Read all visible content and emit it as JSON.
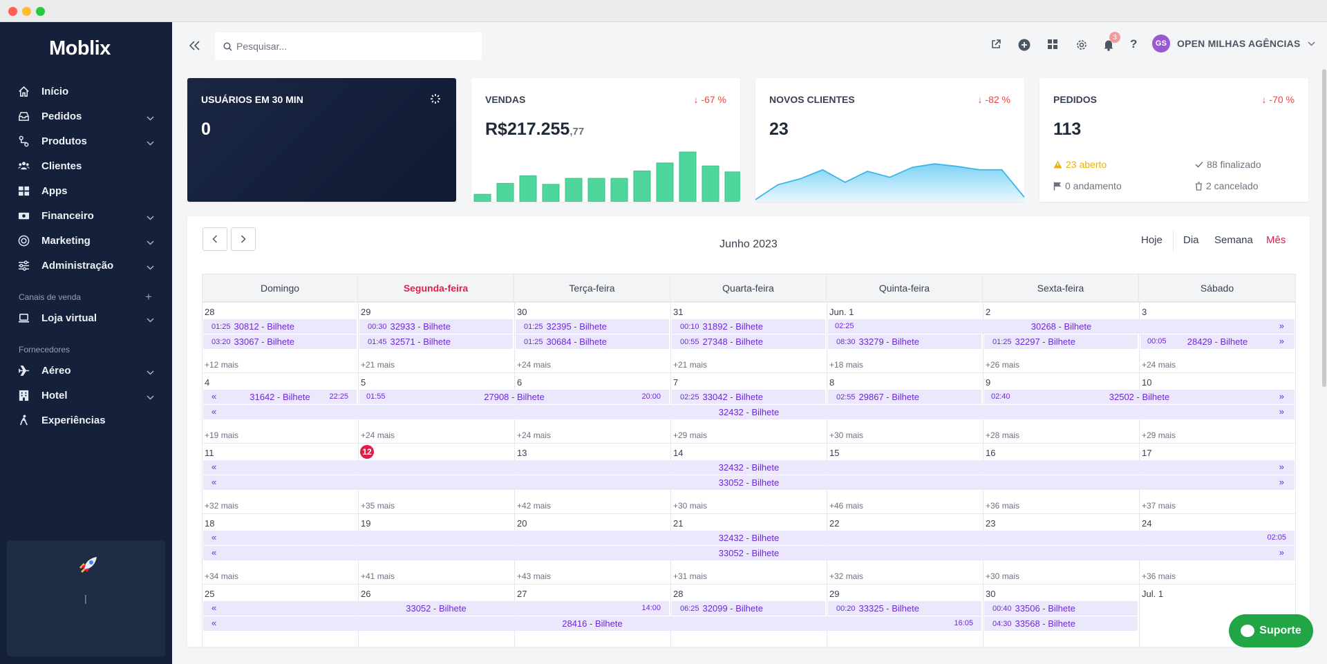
{
  "sidebar": {
    "logo_main": "Moblix",
    "items": [
      {
        "label": "Início",
        "icon": "home-icon",
        "chevron": false
      },
      {
        "label": "Pedidos",
        "icon": "inbox-icon",
        "chevron": true
      },
      {
        "label": "Produtos",
        "icon": "products-icon",
        "chevron": true
      },
      {
        "label": "Clientes",
        "icon": "users-icon",
        "chevron": false
      },
      {
        "label": "Apps",
        "icon": "apps-grid-icon",
        "chevron": false
      },
      {
        "label": "Financeiro",
        "icon": "money-icon",
        "chevron": true
      },
      {
        "label": "Marketing",
        "icon": "target-icon",
        "chevron": true
      },
      {
        "label": "Administração",
        "icon": "sliders-icon",
        "chevron": true
      }
    ],
    "section_sales": "Canais de venda",
    "store": {
      "label": "Loja virtual",
      "icon": "laptop-icon"
    },
    "section_suppliers": "Fornecedores",
    "suppliers": [
      {
        "label": "Aéreo",
        "icon": "plane-icon",
        "chevron": true
      },
      {
        "label": "Hotel",
        "icon": "hotel-icon",
        "chevron": true
      },
      {
        "label": "Experiências",
        "icon": "hiking-icon",
        "chevron": false
      }
    ],
    "support_box_text": "|"
  },
  "topbar": {
    "search_placeholder": "Pesquisar...",
    "notif_count": "3",
    "user_initials": "GS",
    "user_name": "OPEN MILHAS AGÊNCIAS"
  },
  "cards": {
    "users": {
      "title": "USUÁRIOS EM 30 MIN",
      "value": "0"
    },
    "sales": {
      "title": "VENDAS",
      "value": "R$217.255",
      "cents": ",77",
      "delta": "-67 %",
      "bars": [
        0.15,
        0.37,
        0.52,
        0.35,
        0.47,
        0.47,
        0.47,
        0.62,
        0.78,
        1.0,
        0.72,
        0.6
      ]
    },
    "clients": {
      "title": "NOVOS CLIENTES",
      "value": "23",
      "delta": "-82 %",
      "points": [
        0.0,
        0.3,
        0.42,
        0.6,
        0.35,
        0.57,
        0.45,
        0.65,
        0.72,
        0.67,
        0.6,
        0.6,
        0.05
      ]
    },
    "orders": {
      "title": "PEDIDOS",
      "value": "113",
      "delta": "-70 %",
      "open": "23 aberto",
      "done": "88 finalizado",
      "progress": "0 andamento",
      "canceled": "2 cancelado"
    }
  },
  "calendar": {
    "title": "Junho 2023",
    "views": [
      "Hoje",
      "Dia",
      "Semana",
      "Mês"
    ],
    "active_view": "Mês",
    "days": [
      "Domingo",
      "Segunda-feira",
      "Terça-feira",
      "Quarta-feira",
      "Quinta-feira",
      "Sexta-feira",
      "Sábado"
    ],
    "highlight_day": 1,
    "weeks": [
      {
        "dates": [
          "28",
          "29",
          "30",
          "31",
          "Jun. 1",
          "2",
          "3"
        ],
        "more": [
          "+12 mais",
          "+21 mais",
          "+24 mais",
          "+21 mais",
          "+18 mais",
          "+26 mais",
          "+24 mais"
        ],
        "events": [
          {
            "row": 0,
            "s": 0,
            "e": 0,
            "time": "01:25",
            "name": "32395 - Bilhete",
            "code": "30812 - Bilhete"
          },
          {
            "row": 1,
            "s": 0,
            "e": 0,
            "time": "03:20",
            "code": "33067 - Bilhete"
          },
          {
            "row": 0,
            "s": 1,
            "e": 1,
            "time": "00:30",
            "code": "32933 - Bilhete"
          },
          {
            "row": 1,
            "s": 1,
            "e": 1,
            "time": "01:45",
            "code": "32571 - Bilhete"
          },
          {
            "row": 0,
            "s": 2,
            "e": 2,
            "time": "01:25",
            "code": "32395 - Bilhete"
          },
          {
            "row": 1,
            "s": 2,
            "e": 2,
            "time": "01:25",
            "code": "30684 - Bilhete"
          },
          {
            "row": 0,
            "s": 3,
            "e": 3,
            "time": "00:10",
            "code": "31892 - Bilhete"
          },
          {
            "row": 1,
            "s": 3,
            "e": 3,
            "time": "00:55",
            "code": "27348 - Bilhete"
          },
          {
            "row": 0,
            "s": 4,
            "e": 6,
            "time": "02:25",
            "code": "30268 - Bilhete",
            "center": true,
            "right_arrow": true
          },
          {
            "row": 1,
            "s": 4,
            "e": 4,
            "time": "08:30",
            "code": "33279 - Bilhete"
          },
          {
            "row": 1,
            "s": 5,
            "e": 5,
            "time": "01:25",
            "code": "32297 - Bilhete"
          },
          {
            "row": 1,
            "s": 6,
            "e": 6,
            "time": "00:05",
            "code": "28429 - Bilhete",
            "center": true,
            "right_arrow": true
          }
        ]
      },
      {
        "dates": [
          "4",
          "5",
          "6",
          "7",
          "8",
          "9",
          "10"
        ],
        "more": [
          "+19 mais",
          "+24 mais",
          "+24 mais",
          "+29 mais",
          "+30 mais",
          "+28 mais",
          "+29 mais"
        ],
        "events": [
          {
            "row": 0,
            "s": 0,
            "e": 0,
            "code": "31642 - Bilhete",
            "center": true,
            "left_arrow": true,
            "time_right": "22:25"
          },
          {
            "row": 0,
            "s": 1,
            "e": 2,
            "time_left": "01:55",
            "code": "27908 - Bilhete",
            "center": true,
            "time_right": "20:00"
          },
          {
            "row": 0,
            "s": 3,
            "e": 3,
            "time": "02:25",
            "code": "33042 - Bilhete"
          },
          {
            "row": 0,
            "s": 4,
            "e": 4,
            "time": "02:55",
            "code": "29867 - Bilhete"
          },
          {
            "row": 0,
            "s": 5,
            "e": 6,
            "time_left": "02:40",
            "code": "32502 - Bilhete",
            "center": true,
            "right_arrow": true
          },
          {
            "row": 1,
            "s": 0,
            "e": 6,
            "code": "32432 - Bilhete",
            "center": true,
            "left_arrow": true,
            "right_arrow": true
          }
        ]
      },
      {
        "dates": [
          "11",
          "12",
          "13",
          "14",
          "15",
          "16",
          "17"
        ],
        "more": [
          "+32 mais",
          "+35 mais",
          "+42 mais",
          "+30 mais",
          "+46 mais",
          "+36 mais",
          "+37 mais"
        ],
        "events": [
          {
            "row": 0,
            "s": 0,
            "e": 6,
            "code": "32432 - Bilhete",
            "center": true,
            "left_arrow": true,
            "right_arrow": true
          },
          {
            "row": 1,
            "s": 0,
            "e": 6,
            "code": "33052 - Bilhete",
            "center": true,
            "left_arrow": true,
            "right_arrow": true
          }
        ]
      },
      {
        "dates": [
          "18",
          "19",
          "20",
          "21",
          "22",
          "23",
          "24"
        ],
        "more": [
          "+34 mais",
          "+41 mais",
          "+43 mais",
          "+31 mais",
          "+32 mais",
          "+30 mais",
          "+36 mais"
        ],
        "events": [
          {
            "row": 0,
            "s": 0,
            "e": 6,
            "code": "32432 - Bilhete",
            "center": true,
            "left_arrow": true,
            "time_right": "02:05"
          },
          {
            "row": 1,
            "s": 0,
            "e": 6,
            "code": "33052 - Bilhete",
            "center": true,
            "left_arrow": true,
            "right_arrow": true
          }
        ]
      },
      {
        "dates": [
          "25",
          "26",
          "27",
          "28",
          "29",
          "30",
          "Jul. 1"
        ],
        "more": [
          "",
          "",
          "",
          "",
          "",
          "",
          ""
        ],
        "events": [
          {
            "row": 0,
            "s": 0,
            "e": 2,
            "code": "33052 - Bilhete",
            "center": true,
            "left_arrow": true,
            "time_right": "14:00"
          },
          {
            "row": 0,
            "s": 3,
            "e": 3,
            "time": "06:25",
            "code": "32099 - Bilhete"
          },
          {
            "row": 0,
            "s": 4,
            "e": 4,
            "time": "00:20",
            "code": "33325 - Bilhete"
          },
          {
            "row": 0,
            "s": 5,
            "e": 5,
            "time": "00:40",
            "code": "33506 - Bilhete"
          },
          {
            "row": 1,
            "s": 0,
            "e": 4,
            "code": "28416 - Bilhete",
            "center": true,
            "left_arrow": true,
            "time_right": "16:05"
          },
          {
            "row": 1,
            "s": 5,
            "e": 5,
            "time": "04:30",
            "code": "33568 - Bilhete"
          }
        ]
      }
    ],
    "today_date": "12"
  },
  "support_button": "Suporte",
  "colors": {
    "sidebar": "#15213a",
    "accent": "#e11d48",
    "event_bg": "#ece8fc",
    "event_text": "#6d28d9",
    "bars": "#4fd69c",
    "area_line": "#3bb6e8",
    "support": "#22a545"
  }
}
